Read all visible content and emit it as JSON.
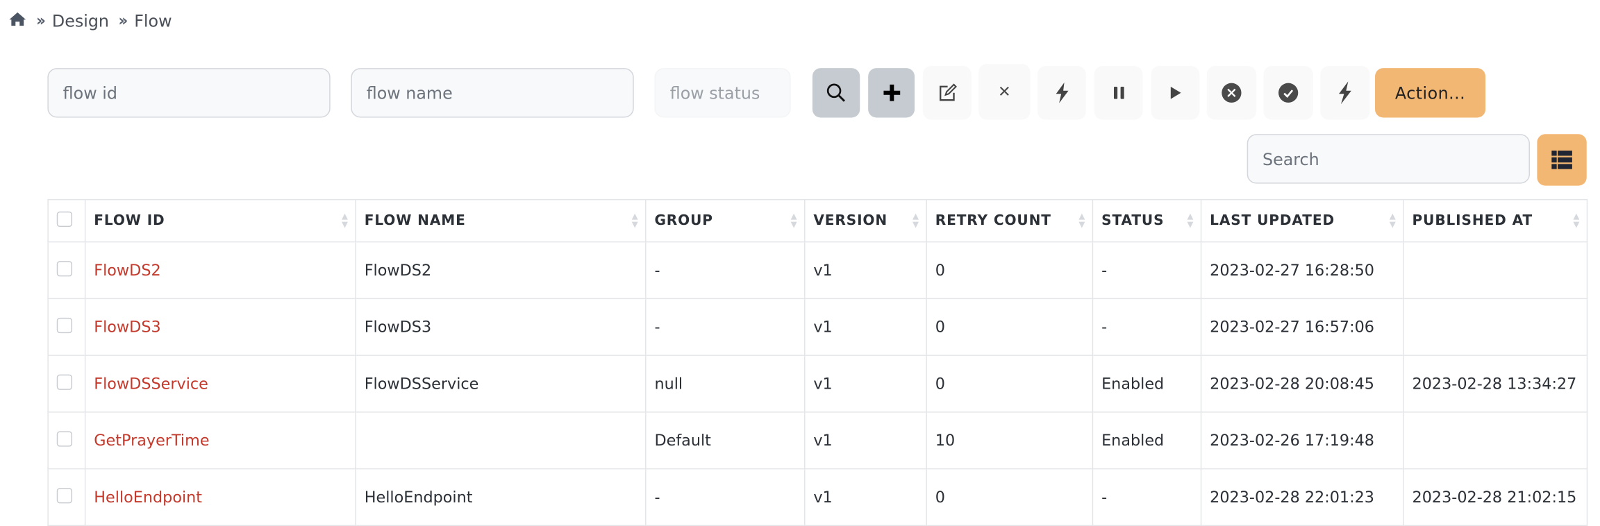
{
  "breadcrumb": {
    "home_icon": "home-icon",
    "items": [
      "Design",
      "Flow"
    ]
  },
  "filters": {
    "flow_id_placeholder": "flow id",
    "flow_name_placeholder": "flow name",
    "flow_status_placeholder": "flow status"
  },
  "toolbar": {
    "buttons": [
      "search-icon",
      "plus-icon",
      "edit-icon",
      "close-icon",
      "bolt-icon",
      "pause-icon",
      "play-icon",
      "x-circle-icon",
      "check-circle-icon",
      "bolt-icon"
    ],
    "action_label": "Action...",
    "accent": "#f3b774"
  },
  "table_search": {
    "placeholder": "Search",
    "columns_icon": "list-icon"
  },
  "table": {
    "headers": [
      "FLOW ID",
      "FLOW NAME",
      "GROUP",
      "VERSION",
      "RETRY COUNT",
      "STATUS",
      "LAST UPDATED",
      "PUBLISHED AT"
    ],
    "rows": [
      [
        "FlowDS2",
        "FlowDS2",
        "-",
        "v1",
        "0",
        "-",
        "2023-02-27 16:28:50",
        ""
      ],
      [
        "FlowDS3",
        "FlowDS3",
        "-",
        "v1",
        "0",
        "-",
        "2023-02-27 16:57:06",
        ""
      ],
      [
        "FlowDSService",
        "FlowDSService",
        "null",
        "v1",
        "0",
        "Enabled",
        "2023-02-28 20:08:45",
        "2023-02-28 13:34:27"
      ],
      [
        "GetPrayerTime",
        "",
        "Default",
        "v1",
        "10",
        "Enabled",
        "2023-02-26 17:19:48",
        ""
      ],
      [
        "HelloEndpoint",
        "HelloEndpoint",
        "-",
        "v1",
        "0",
        "-",
        "2023-02-28 22:01:23",
        "2023-02-28 21:02:15"
      ]
    ],
    "link_color": "#c33a2c"
  }
}
